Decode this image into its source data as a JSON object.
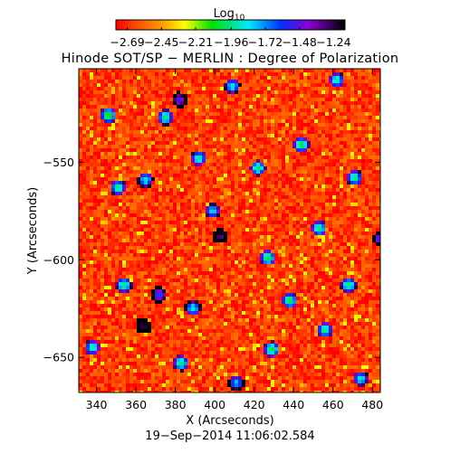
{
  "chart_data": {
    "type": "heatmap",
    "title": "Hinode SOT/SP − MERLIN : Degree of Polarization",
    "xlabel": "X (Arcseconds)",
    "ylabel": "Y (Arcseconds)",
    "footer": "19−Sep−2014 11:06:02.584",
    "colorbar": {
      "label_base": "Log",
      "label_sub": "10",
      "range": [
        -2.77,
        -1.16
      ],
      "tick_values": [
        -2.69,
        -2.45,
        -2.21,
        -1.96,
        -1.72,
        -1.48,
        -1.24
      ],
      "tick_labels": [
        "−2.69",
        "−2.45",
        "−2.21",
        "−1.96",
        "−1.72",
        "−1.48",
        "−1.24"
      ],
      "colormap": "rainbow (red → yellow → green → cyan → blue → purple → black)"
    },
    "xlim": [
      331,
      484
    ],
    "ylim": [
      -668,
      -502
    ],
    "x_ticks": [
      340,
      360,
      380,
      400,
      420,
      440,
      460,
      480
    ],
    "x_tick_labels": [
      "340",
      "360",
      "380",
      "400",
      "420",
      "440",
      "460",
      "480"
    ],
    "y_ticks": [
      -550,
      -600,
      -650
    ],
    "y_tick_labels": [
      "−550",
      "−600",
      "−650"
    ],
    "grid": false,
    "dominant_value": -2.65,
    "hotspots": [
      {
        "x": 381,
        "y": -517,
        "v": -1.55
      },
      {
        "x": 408,
        "y": -510,
        "v": -1.9
      },
      {
        "x": 461,
        "y": -507,
        "v": -1.95
      },
      {
        "x": 345,
        "y": -525,
        "v": -2.1
      },
      {
        "x": 374,
        "y": -526,
        "v": -2.0
      },
      {
        "x": 391,
        "y": -547,
        "v": -1.95
      },
      {
        "x": 443,
        "y": -540,
        "v": -2.05
      },
      {
        "x": 350,
        "y": -562,
        "v": -2.0
      },
      {
        "x": 364,
        "y": -558,
        "v": -1.9
      },
      {
        "x": 421,
        "y": -552,
        "v": -2.0
      },
      {
        "x": 398,
        "y": -574,
        "v": -1.85
      },
      {
        "x": 402,
        "y": -587,
        "v": -1.35
      },
      {
        "x": 470,
        "y": -557,
        "v": -2.0
      },
      {
        "x": 426,
        "y": -598,
        "v": -2.05
      },
      {
        "x": 452,
        "y": -583,
        "v": -2.0
      },
      {
        "x": 353,
        "y": -612,
        "v": -2.0
      },
      {
        "x": 371,
        "y": -617,
        "v": -1.65
      },
      {
        "x": 363,
        "y": -633,
        "v": -1.3
      },
      {
        "x": 388,
        "y": -624,
        "v": -1.9
      },
      {
        "x": 437,
        "y": -620,
        "v": -2.05
      },
      {
        "x": 455,
        "y": -635,
        "v": -2.0
      },
      {
        "x": 337,
        "y": -644,
        "v": -1.95
      },
      {
        "x": 382,
        "y": -652,
        "v": -2.0
      },
      {
        "x": 410,
        "y": -662,
        "v": -1.8
      },
      {
        "x": 428,
        "y": -645,
        "v": -2.05
      },
      {
        "x": 473,
        "y": -660,
        "v": -1.9
      },
      {
        "x": 483,
        "y": -588,
        "v": -1.6
      },
      {
        "x": 467,
        "y": -612,
        "v": -2.0
      }
    ]
  }
}
